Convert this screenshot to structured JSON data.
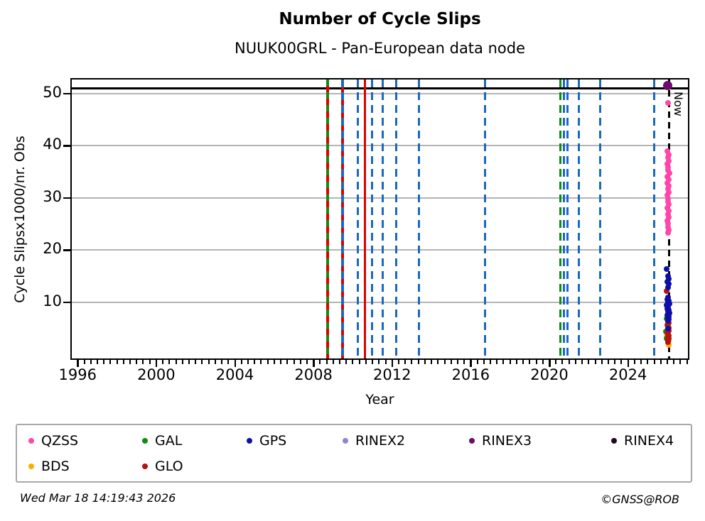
{
  "title": "Number of Cycle Slips",
  "subtitle": "NUUK00GRL - Pan-European data node",
  "footer": {
    "timestamp": "Wed Mar 18 14:19:43 2026",
    "credit": "©GNSS@ROB"
  },
  "colors": {
    "grid": "#b4b4b4",
    "frame": "#000000",
    "gps_event": "#1a68bf",
    "glo_event": "#dd0000",
    "gal_event": "#128a12",
    "now_line": "#000000"
  },
  "legend": {
    "items": [
      {
        "label": "QZSS",
        "color": "#ff47ab"
      },
      {
        "label": "GAL",
        "color": "#128a12"
      },
      {
        "label": "GPS",
        "color": "#0f0fa8"
      },
      {
        "label": "RINEX2",
        "color": "#8d85d0"
      },
      {
        "label": "RINEX3",
        "color": "#6d0b6d"
      },
      {
        "label": "RINEX4",
        "color": "#230823"
      },
      {
        "label": "BDS",
        "color": "#ffab00"
      },
      {
        "label": "GLO",
        "color": "#b51212"
      }
    ]
  },
  "chart_data": {
    "type": "scatter",
    "title": "Number of Cycle Slips",
    "subtitle": "NUUK00GRL - Pan-European data node",
    "xlabel": "Year",
    "ylabel": "Cycle Slipsx1000/nr. Obs",
    "xlim": [
      1995.7,
      2027.05
    ],
    "ylim": [
      -0.75,
      52.7
    ],
    "x_major_ticks": [
      1996,
      2000,
      2004,
      2008,
      2012,
      2016,
      2020,
      2024
    ],
    "x_minor_tick_step_years": 0.3333,
    "y_major_ticks": [
      10,
      20,
      30,
      40,
      50
    ],
    "grid": "horizontal-only",
    "legend_position": "below",
    "top_value_line": {
      "value": 51,
      "color": "#000000"
    },
    "now_line": {
      "year": 2026.08,
      "label": "Now",
      "color": "#000000",
      "style": "dashed"
    },
    "event_lines": [
      {
        "year": 2008.7,
        "style": "gal-glo"
      },
      {
        "year": 2009.46,
        "style": "glo-gps"
      },
      {
        "year": 2010.25,
        "style": "gps"
      },
      {
        "year": 2010.61,
        "style": "glo"
      },
      {
        "year": 2010.97,
        "style": "gps"
      },
      {
        "year": 2011.51,
        "style": "gps"
      },
      {
        "year": 2012.19,
        "style": "gps"
      },
      {
        "year": 2013.38,
        "style": "gps"
      },
      {
        "year": 2016.72,
        "style": "gps"
      },
      {
        "year": 2020.57,
        "style": "gal"
      },
      {
        "year": 2020.75,
        "style": "gps"
      },
      {
        "year": 2020.93,
        "style": "gps"
      },
      {
        "year": 2021.51,
        "style": "gps"
      },
      {
        "year": 2022.59,
        "style": "gps"
      },
      {
        "year": 2025.32,
        "style": "gps"
      }
    ],
    "series": [
      {
        "name": "BDS",
        "color": "#ffab00",
        "marker_px": 8,
        "points": [
          [
            2025.96,
            3.4
          ],
          [
            2026.0,
            3.0
          ],
          [
            2026.06,
            2.6
          ],
          [
            2026.03,
            2.1
          ],
          [
            2026.08,
            1.9
          ]
        ]
      },
      {
        "name": "GAL",
        "color": "#128a12",
        "marker_px": 8,
        "points": [
          [
            2025.95,
            6.8
          ],
          [
            2025.94,
            4.4
          ],
          [
            2025.96,
            3.1
          ]
        ]
      },
      {
        "name": "GLO",
        "color": "#b51212",
        "marker_px": 8,
        "points": [
          [
            2025.98,
            12.2
          ],
          [
            2026.03,
            6.3
          ],
          [
            2026.07,
            6.0
          ],
          [
            2026.0,
            5.7
          ],
          [
            2026.05,
            5.4
          ],
          [
            2026.09,
            5.1
          ],
          [
            2026.02,
            4.8
          ],
          [
            2026.06,
            4.5
          ],
          [
            2026.0,
            4.2
          ],
          [
            2026.04,
            3.9
          ],
          [
            2026.08,
            3.6
          ],
          [
            2026.02,
            3.3
          ],
          [
            2026.06,
            3.0
          ],
          [
            2026.03,
            2.7
          ],
          [
            2026.05,
            2.4
          ]
        ]
      },
      {
        "name": "GPS",
        "color": "#0f0fa8",
        "marker_px": 8,
        "points": [
          [
            2025.97,
            16.4
          ],
          [
            2026.03,
            15.0
          ],
          [
            2026.06,
            14.5
          ],
          [
            2026.01,
            14.0
          ],
          [
            2026.07,
            13.5
          ],
          [
            2026.04,
            12.9
          ],
          [
            2026.04,
            10.9
          ],
          [
            2025.99,
            10.6
          ],
          [
            2026.08,
            10.3
          ],
          [
            2026.02,
            10.0
          ],
          [
            2026.1,
            9.7
          ],
          [
            2025.98,
            9.4
          ],
          [
            2026.05,
            9.1
          ],
          [
            2026.01,
            8.8
          ],
          [
            2026.09,
            8.5
          ],
          [
            2026.03,
            8.2
          ],
          [
            2026.11,
            7.9
          ],
          [
            2025.99,
            7.6
          ],
          [
            2026.06,
            7.3
          ],
          [
            2026.02,
            7.0
          ],
          [
            2026.08,
            6.7
          ],
          [
            2026.04,
            6.4
          ],
          [
            2026.05,
            5.0
          ]
        ]
      },
      {
        "name": "QZSS",
        "color": "#ff47ab",
        "marker_px": 8,
        "points": [
          [
            2026.02,
            48.2
          ],
          [
            2026.0,
            38.9
          ],
          [
            2026.07,
            38.3
          ],
          [
            2026.02,
            37.7
          ],
          [
            2026.09,
            37.1
          ],
          [
            2025.99,
            36.5
          ],
          [
            2026.05,
            35.9
          ],
          [
            2026.03,
            35.3
          ],
          [
            2026.1,
            34.7
          ],
          [
            2026.01,
            34.1
          ],
          [
            2026.06,
            33.5
          ],
          [
            2026.0,
            32.9
          ],
          [
            2026.08,
            32.3
          ],
          [
            2026.02,
            31.7
          ],
          [
            2026.09,
            31.1
          ],
          [
            2026.0,
            30.5
          ],
          [
            2026.05,
            29.9
          ],
          [
            2026.02,
            29.3
          ],
          [
            2026.08,
            28.7
          ],
          [
            2026.0,
            28.1
          ],
          [
            2026.06,
            27.5
          ],
          [
            2026.03,
            26.9
          ],
          [
            2026.09,
            26.3
          ],
          [
            2026.01,
            25.7
          ],
          [
            2026.05,
            25.1
          ],
          [
            2026.02,
            24.4
          ],
          [
            2026.07,
            23.8
          ],
          [
            2026.03,
            23.3
          ]
        ]
      },
      {
        "name": "RINEX3",
        "color": "#6d0b6d",
        "marker_px": 13,
        "points": [
          [
            2026.02,
            51.6
          ]
        ]
      }
    ]
  }
}
